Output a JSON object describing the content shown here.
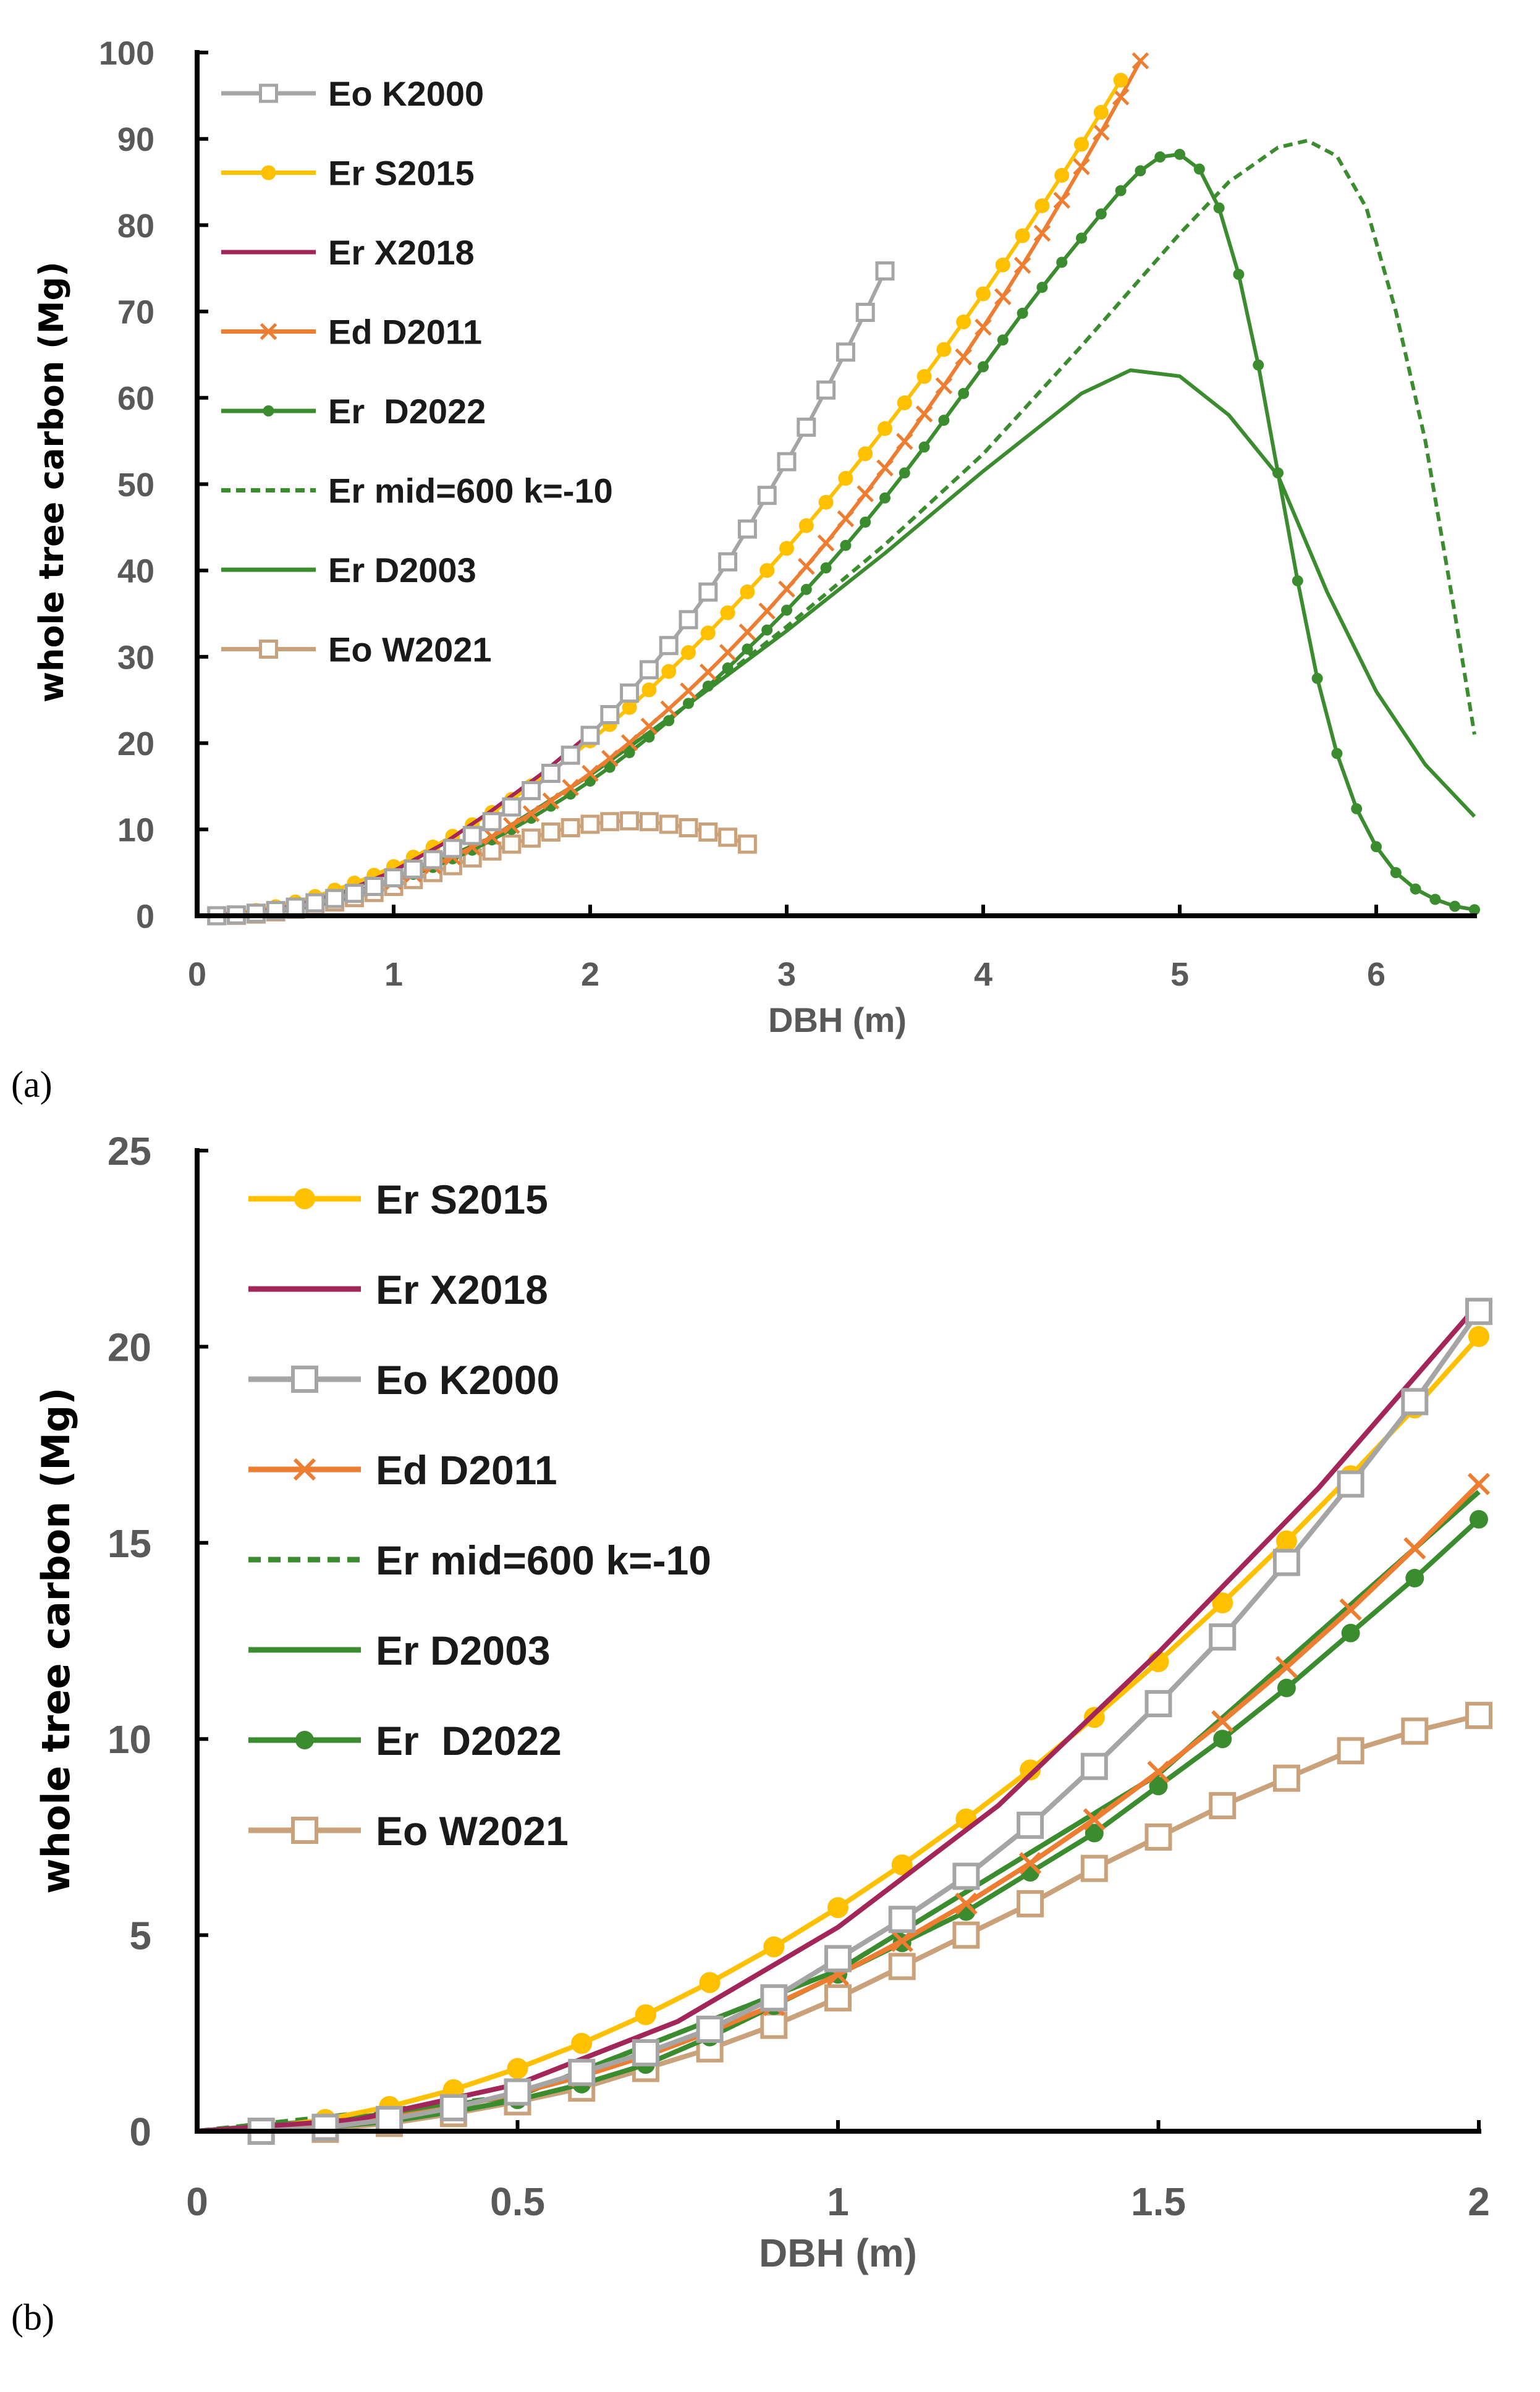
{
  "colors": {
    "Eo K2000": "#A5A5A5",
    "Er S2015": "#FFC000",
    "Er X2018": "#A3265B",
    "Ed D2011": "#ED7D31",
    "Er  D2022": "#3A8C2F",
    "Er mid=600 k=-10": "#3A8C2F",
    "Er D2003": "#3A8C2F",
    "Eo W2021": "#C9A27B"
  },
  "chart_data": [
    {
      "panel_label": "(a)",
      "type": "line",
      "xlabel": "DBH (m)",
      "ylabel": "whole tree carbon (Mg)",
      "xlim": [
        0,
        6.5
      ],
      "ylim": [
        0,
        100
      ],
      "xticks": [
        "0",
        "1",
        "2",
        "3",
        "4",
        "5",
        "6"
      ],
      "yticks": [
        "0",
        "10",
        "20",
        "30",
        "40",
        "50",
        "60",
        "70",
        "80",
        "90",
        "100"
      ],
      "grid": false,
      "legend_placement": "top-left",
      "legend_order": [
        "Eo K2000",
        "Er S2015",
        "Er X2018",
        "Ed D2011",
        "Er  D2022",
        "Er mid=600 k=-10",
        "Er D2003",
        "Eo W2021"
      ],
      "series": [
        {
          "name": "Eo K2000",
          "marker": "open-square",
          "line": "solid",
          "x": [
            0.1,
            0.2,
            0.3,
            0.4,
            0.5,
            0.6,
            0.7,
            0.8,
            0.9,
            1.0,
            1.1,
            1.2,
            1.3,
            1.4,
            1.5,
            1.6,
            1.7,
            1.8,
            1.9,
            2.0,
            2.1,
            2.2,
            2.3,
            2.4,
            2.5,
            2.6,
            2.7,
            2.8,
            2.9,
            3.0,
            3.1,
            3.2,
            3.3,
            3.4,
            3.5
          ],
          "y": [
            0,
            0.1,
            0.3,
            0.6,
            1.0,
            1.5,
            2.0,
            2.6,
            3.4,
            4.4,
            5.4,
            6.5,
            7.8,
            9.3,
            10.9,
            12.6,
            14.5,
            16.5,
            18.6,
            20.9,
            23.3,
            25.8,
            28.5,
            31.3,
            34.3,
            37.5,
            41.0,
            44.8,
            48.7,
            52.6,
            56.6,
            60.9,
            65.3,
            69.9,
            74.7
          ]
        },
        {
          "name": "Er S2015",
          "marker": "circle",
          "line": "solid",
          "x": [
            0.1,
            0.2,
            0.3,
            0.4,
            0.5,
            0.6,
            0.7,
            0.8,
            0.9,
            1.0,
            1.1,
            1.2,
            1.3,
            1.4,
            1.5,
            1.6,
            1.7,
            1.8,
            1.9,
            2.0,
            2.1,
            2.2,
            2.3,
            2.4,
            2.5,
            2.6,
            2.7,
            2.8,
            2.9,
            3.0,
            3.1,
            3.2,
            3.3,
            3.4,
            3.5,
            3.6,
            3.7,
            3.8,
            3.9,
            4.0,
            4.1,
            4.2,
            4.3,
            4.4,
            4.5,
            4.6,
            4.7
          ],
          "y": [
            0.08,
            0.3,
            0.63,
            1.06,
            1.6,
            2.24,
            2.97,
            3.79,
            4.7,
            5.7,
            6.79,
            7.96,
            9.21,
            10.55,
            11.97,
            13.47,
            15.05,
            16.71,
            18.44,
            20.26,
            22.15,
            24.13,
            26.17,
            28.3,
            30.49,
            32.76,
            35.1,
            37.52,
            40.0,
            42.56,
            45.19,
            47.9,
            50.67,
            53.52,
            56.44,
            59.42,
            62.47,
            65.6,
            68.79,
            72.05,
            75.39,
            78.78,
            82.25,
            85.77,
            89.37,
            93.07,
            96.8
          ]
        },
        {
          "name": "Er X2018",
          "marker": "none",
          "line": "solid",
          "x": [
            0,
            0.25,
            0.5,
            0.75,
            1.0,
            1.25,
            1.5,
            1.75,
            2.0
          ],
          "y": [
            0,
            0.3,
            1.2,
            2.8,
            5.2,
            8.3,
            12.2,
            16.4,
            21.1
          ]
        },
        {
          "name": "Ed D2011",
          "marker": "x",
          "line": "solid",
          "x": [
            0.1,
            0.2,
            0.3,
            0.4,
            0.5,
            0.6,
            0.7,
            0.8,
            0.9,
            1.0,
            1.1,
            1.2,
            1.3,
            1.4,
            1.5,
            1.6,
            1.7,
            1.8,
            1.9,
            2.0,
            2.1,
            2.2,
            2.3,
            2.4,
            2.5,
            2.6,
            2.7,
            2.8,
            2.9,
            3.0,
            3.1,
            3.2,
            3.3,
            3.4,
            3.5,
            3.6,
            3.7,
            3.8,
            3.9,
            4.0,
            4.1,
            4.2,
            4.3,
            4.4,
            4.5,
            4.6,
            4.7,
            4.8
          ],
          "y": [
            0.04,
            0.15,
            0.34,
            0.61,
            0.97,
            1.4,
            1.92,
            2.53,
            3.22,
            3.99,
            4.85,
            5.8,
            6.83,
            7.95,
            9.16,
            10.45,
            11.83,
            13.3,
            14.86,
            16.5,
            18.23,
            20.05,
            21.96,
            23.96,
            26.05,
            28.23,
            30.5,
            32.86,
            35.3,
            37.84,
            40.47,
            43.18,
            45.99,
            48.89,
            51.88,
            54.95,
            58.13,
            61.39,
            64.74,
            68.18,
            71.71,
            75.35,
            79.07,
            82.88,
            86.78,
            90.77,
            94.86,
            99.04
          ]
        },
        {
          "name": "Er  D2022",
          "marker": "small-circle",
          "line": "solid",
          "x": [
            0.1,
            0.2,
            0.3,
            0.4,
            0.5,
            0.6,
            0.7,
            0.8,
            0.9,
            1.0,
            1.1,
            1.2,
            1.3,
            1.4,
            1.5,
            1.6,
            1.7,
            1.8,
            1.9,
            2.0,
            2.1,
            2.2,
            2.3,
            2.4,
            2.5,
            2.6,
            2.7,
            2.8,
            2.9,
            3.0,
            3.1,
            3.2,
            3.3,
            3.4,
            3.5,
            3.6,
            3.7,
            3.8,
            3.9,
            4.0,
            4.1,
            4.2,
            4.3,
            4.4,
            4.5,
            4.6,
            4.7,
            4.8,
            4.9,
            5.0,
            5.1,
            5.2,
            5.3,
            5.4,
            5.5,
            5.6,
            5.7,
            5.8,
            5.9,
            6.0,
            6.1,
            6.2,
            6.3,
            6.4,
            6.5
          ],
          "y": [
            0,
            0.1,
            0.25,
            0.5,
            0.8,
            1.2,
            1.7,
            2.4,
            3.2,
            4.0,
            4.8,
            5.6,
            6.6,
            7.6,
            8.8,
            10.0,
            11.3,
            12.7,
            14.1,
            15.6,
            17.2,
            18.9,
            20.7,
            22.6,
            24.6,
            26.6,
            28.7,
            30.9,
            33.1,
            35.4,
            37.8,
            40.3,
            42.9,
            45.6,
            48.4,
            51.3,
            54.3,
            57.4,
            60.5,
            63.6,
            66.7,
            69.8,
            72.8,
            75.7,
            78.5,
            81.3,
            84.0,
            86.3,
            87.9,
            88.2,
            86.5,
            82.0,
            74.3,
            63.8,
            51.3,
            38.8,
            27.5,
            18.8,
            12.4,
            8.0,
            5.0,
            3.1,
            1.9,
            1.1,
            0.7
          ]
        },
        {
          "name": "Er mid=600 k=-10",
          "marker": "none",
          "line": "dashed",
          "x": [
            0,
            0.5,
            1.0,
            1.5,
            2.0,
            2.5,
            3.0,
            3.5,
            4.0,
            4.5,
            5.0,
            5.25,
            5.5,
            5.65,
            5.8,
            5.95,
            6.1,
            6.25,
            6.4,
            6.5
          ],
          "y": [
            0,
            0.9,
            4.1,
            9.1,
            16.3,
            24.5,
            33.5,
            43.0,
            53.5,
            66.0,
            79.0,
            85.0,
            89.0,
            89.8,
            88.0,
            82.0,
            70.0,
            55.0,
            35.0,
            21.0
          ]
        },
        {
          "name": "Er D2003",
          "marker": "none",
          "line": "solid",
          "x": [
            0,
            0.25,
            0.5,
            1.0,
            1.5,
            2.0,
            2.5,
            3.0,
            3.5,
            4.0,
            4.25,
            4.5,
            4.75,
            5.0,
            5.25,
            5.5,
            5.75,
            6.0,
            6.25,
            6.5
          ],
          "y": [
            0,
            0.35,
            0.9,
            4.1,
            9.1,
            16.3,
            24.5,
            33.0,
            42.0,
            51.5,
            56.0,
            60.5,
            63.2,
            62.5,
            58.0,
            51.0,
            37.5,
            26.0,
            17.5,
            11.5
          ]
        },
        {
          "name": "Eo W2021",
          "marker": "open-square",
          "line": "solid",
          "x": [
            0.1,
            0.2,
            0.3,
            0.4,
            0.5,
            0.6,
            0.7,
            0.8,
            0.9,
            1.0,
            1.1,
            1.2,
            1.3,
            1.4,
            1.5,
            1.6,
            1.7,
            1.8,
            1.9,
            2.0,
            2.1,
            2.2,
            2.3,
            2.4,
            2.5,
            2.6,
            2.7,
            2.8
          ],
          "y": [
            0,
            0.05,
            0.2,
            0.45,
            0.75,
            1.1,
            1.6,
            2.1,
            2.7,
            3.4,
            4.2,
            5.0,
            5.8,
            6.7,
            7.5,
            8.3,
            9.0,
            9.7,
            10.2,
            10.6,
            10.9,
            11.0,
            10.9,
            10.6,
            10.2,
            9.7,
            9.1,
            8.3
          ]
        }
      ]
    },
    {
      "panel_label": "(b)",
      "type": "line",
      "xlabel": "DBH (m)",
      "ylabel": "whole tree carbon (Mg)",
      "xlim": [
        0,
        2
      ],
      "ylim": [
        0,
        25
      ],
      "xticks": [
        "0",
        "0.5",
        "1",
        "1.5",
        "2"
      ],
      "yticks": [
        "0",
        "5",
        "10",
        "15",
        "20",
        "25"
      ],
      "grid": false,
      "legend_placement": "top-left",
      "legend_order": [
        "Er S2015",
        "Er X2018",
        "Eo K2000",
        "Ed D2011",
        "Er mid=600 k=-10",
        "Er D2003",
        "Er  D2022",
        "Eo W2021"
      ]
    }
  ]
}
